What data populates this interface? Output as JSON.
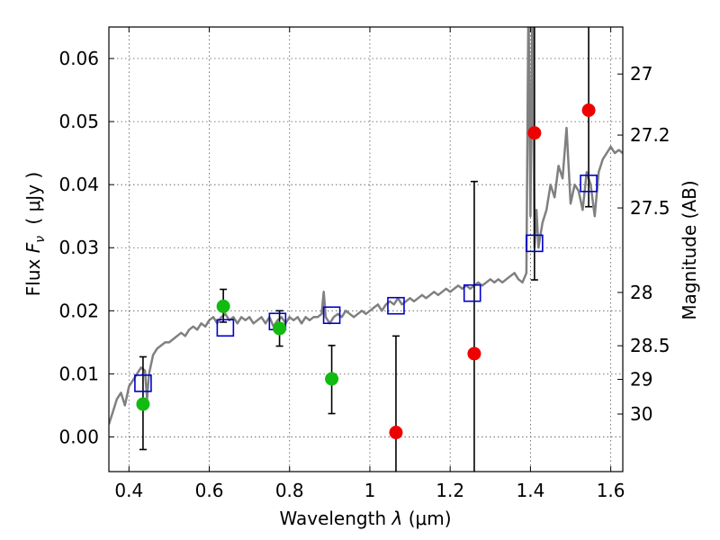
{
  "chart_data": {
    "type": "scatter",
    "xlabel_prefix": "Wavelength",
    "xlabel_symbol": "λ",
    "xlabel_unit": "(μm)",
    "ylabel_prefix": "Flux",
    "ylabel_symbol": "F",
    "ylabel_subscript": "ν",
    "ylabel_unit": "( μJy )",
    "y2label": "Magnitude (AB)",
    "xlim": [
      0.35,
      1.63
    ],
    "ylim": [
      -0.0055,
      0.065
    ],
    "x_ticks": [
      0.4,
      0.6,
      0.8,
      1.0,
      1.2,
      1.4,
      1.6
    ],
    "x_tick_labels": [
      "0.4",
      "0.6",
      "0.8",
      "1",
      "1.2",
      "1.4",
      "1.6"
    ],
    "y_ticks": [
      0.0,
      0.01,
      0.02,
      0.03,
      0.04,
      0.05,
      0.06
    ],
    "y_tick_labels": [
      "0.00",
      "0.01",
      "0.02",
      "0.03",
      "0.04",
      "0.05",
      "0.06"
    ],
    "y2_ticks": [
      27,
      27.2,
      27.5,
      28,
      28.5,
      29,
      30
    ],
    "y2_tick_labels": [
      "27",
      "27.2",
      "27.5",
      "28",
      "28.5",
      "29",
      "30"
    ],
    "grid": true,
    "colors": {
      "spectrum": "#808080",
      "model": "#0000cc",
      "green": "#11bb11",
      "red": "#ee0000",
      "errorbar": "#000000",
      "grid": "#555555"
    },
    "spectrum": {
      "x": [
        0.35,
        0.36,
        0.37,
        0.38,
        0.39,
        0.4,
        0.41,
        0.42,
        0.43,
        0.44,
        0.445,
        0.45,
        0.46,
        0.47,
        0.48,
        0.49,
        0.5,
        0.51,
        0.52,
        0.53,
        0.54,
        0.55,
        0.56,
        0.57,
        0.58,
        0.59,
        0.6,
        0.61,
        0.62,
        0.63,
        0.64,
        0.65,
        0.66,
        0.67,
        0.68,
        0.69,
        0.7,
        0.71,
        0.72,
        0.73,
        0.74,
        0.75,
        0.76,
        0.77,
        0.78,
        0.79,
        0.8,
        0.81,
        0.82,
        0.83,
        0.84,
        0.85,
        0.86,
        0.87,
        0.88,
        0.885,
        0.89,
        0.9,
        0.91,
        0.92,
        0.93,
        0.94,
        0.95,
        0.96,
        0.97,
        0.98,
        0.99,
        1.0,
        1.01,
        1.02,
        1.03,
        1.04,
        1.05,
        1.06,
        1.07,
        1.08,
        1.09,
        1.1,
        1.11,
        1.12,
        1.13,
        1.14,
        1.15,
        1.16,
        1.17,
        1.18,
        1.19,
        1.2,
        1.21,
        1.22,
        1.23,
        1.24,
        1.25,
        1.26,
        1.27,
        1.28,
        1.29,
        1.3,
        1.31,
        1.32,
        1.33,
        1.34,
        1.35,
        1.36,
        1.37,
        1.38,
        1.39,
        1.395,
        1.4,
        1.405,
        1.41,
        1.415,
        1.42,
        1.43,
        1.44,
        1.45,
        1.46,
        1.47,
        1.48,
        1.49,
        1.5,
        1.51,
        1.52,
        1.53,
        1.54,
        1.55,
        1.56,
        1.57,
        1.58,
        1.59,
        1.6,
        1.61,
        1.62,
        1.63
      ],
      "y": [
        0.002,
        0.004,
        0.006,
        0.007,
        0.005,
        0.008,
        0.009,
        0.01,
        0.011,
        0.0105,
        0.006,
        0.01,
        0.013,
        0.014,
        0.0145,
        0.015,
        0.015,
        0.0155,
        0.016,
        0.0165,
        0.016,
        0.017,
        0.0175,
        0.017,
        0.018,
        0.0175,
        0.0185,
        0.019,
        0.018,
        0.019,
        0.0195,
        0.0185,
        0.019,
        0.018,
        0.019,
        0.0185,
        0.019,
        0.018,
        0.0185,
        0.019,
        0.018,
        0.019,
        0.0175,
        0.0185,
        0.019,
        0.018,
        0.019,
        0.0185,
        0.019,
        0.018,
        0.019,
        0.0185,
        0.019,
        0.019,
        0.0195,
        0.023,
        0.019,
        0.018,
        0.019,
        0.0195,
        0.019,
        0.02,
        0.0195,
        0.019,
        0.0195,
        0.02,
        0.0195,
        0.02,
        0.0205,
        0.021,
        0.02,
        0.021,
        0.0215,
        0.021,
        0.022,
        0.021,
        0.0215,
        0.022,
        0.0215,
        0.022,
        0.0225,
        0.022,
        0.0225,
        0.023,
        0.0225,
        0.023,
        0.0235,
        0.023,
        0.0235,
        0.024,
        0.0235,
        0.024,
        0.0235,
        0.024,
        0.0245,
        0.024,
        0.0245,
        0.025,
        0.0245,
        0.025,
        0.0245,
        0.025,
        0.0255,
        0.026,
        0.025,
        0.0245,
        0.026,
        0.07,
        0.035,
        0.07,
        0.03,
        0.036,
        0.03,
        0.034,
        0.036,
        0.04,
        0.038,
        0.043,
        0.041,
        0.049,
        0.037,
        0.04,
        0.039,
        0.036,
        0.042,
        0.04,
        0.035,
        0.042,
        0.044,
        0.045,
        0.046,
        0.045,
        0.0455,
        0.045
      ]
    },
    "series": [
      {
        "marker": "square",
        "x": [
          0.435,
          0.64,
          0.77,
          0.905,
          1.065,
          1.255,
          1.41,
          1.545
        ],
        "y": [
          0.0085,
          0.0173,
          0.0183,
          0.0193,
          0.0208,
          0.0228,
          0.0307,
          0.0402
        ]
      },
      {
        "marker": "circle-green",
        "x": [
          0.435,
          0.635,
          0.775,
          0.905
        ],
        "y": [
          0.0052,
          0.0207,
          0.0172,
          0.0092
        ],
        "err_low": [
          -0.002,
          0.0182,
          0.0144,
          0.0037
        ],
        "err_high": [
          0.0127,
          0.0234,
          0.02,
          0.0145
        ]
      },
      {
        "marker": "circle-red",
        "x": [
          1.065,
          1.26,
          1.41,
          1.545
        ],
        "y": [
          0.0007,
          0.0132,
          0.0482,
          0.0518
        ],
        "err_low": [
          -0.0055,
          -0.0055,
          0.0249,
          0.0365
        ],
        "err_high": [
          0.016,
          0.0405,
          0.065,
          0.065
        ]
      }
    ]
  }
}
